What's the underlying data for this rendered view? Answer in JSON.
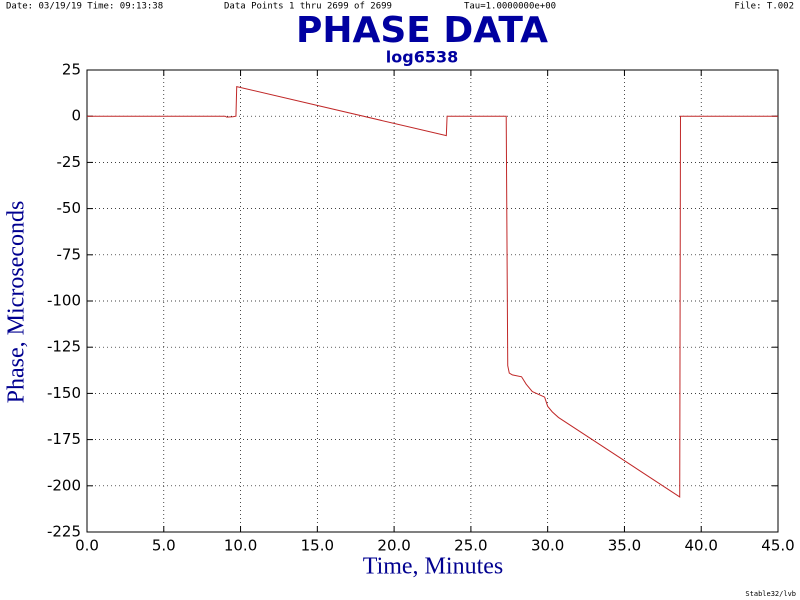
{
  "chart_data": {
    "type": "line",
    "title": "PHASE DATA",
    "subtitle": "log6538",
    "annotations": [
      "Date: 03/19/19  Time: 09:13:38",
      "Data Points 1 thru 2699 of 2699",
      "Tau=1.0000000e+00",
      "File: T.002",
      "Stable32/lvb"
    ],
    "x_label": "Time,  Minutes",
    "y_label": "Phase,  Microseconds",
    "color": "#c02828",
    "grid": true,
    "xlim": [
      0,
      45
    ],
    "ylim": [
      -225,
      25
    ],
    "xticks": [
      {
        "value": 0,
        "label": "0.0"
      },
      {
        "value": 5,
        "label": "5.0"
      },
      {
        "value": 10,
        "label": "10.0"
      },
      {
        "value": 15,
        "label": "15.0"
      },
      {
        "value": 20,
        "label": "20.0"
      },
      {
        "value": 25,
        "label": "25.0"
      },
      {
        "value": 30,
        "label": "30.0"
      },
      {
        "value": 35,
        "label": "35.0"
      },
      {
        "value": 40,
        "label": "40.0"
      },
      {
        "value": 45,
        "label": "45.0"
      }
    ],
    "yticks": [
      25,
      0,
      -25,
      -50,
      -75,
      -100,
      -125,
      -150,
      -175,
      -200,
      -225
    ],
    "x": [
      0,
      9.0,
      9.1,
      9.5,
      9.7,
      9.75,
      23.4,
      23.45,
      27.3,
      27.4,
      27.5,
      27.7,
      28.3,
      28.6,
      29.0,
      29.8,
      30.0,
      30.3,
      30.7,
      38.6,
      38.65,
      45
    ],
    "values": [
      0,
      0,
      -0.5,
      -0.3,
      0,
      16,
      -10.5,
      0,
      0,
      -135,
      -139,
      -140,
      -141,
      -145,
      -149,
      -152,
      -157,
      -160,
      -163,
      -206,
      0,
      0
    ]
  }
}
